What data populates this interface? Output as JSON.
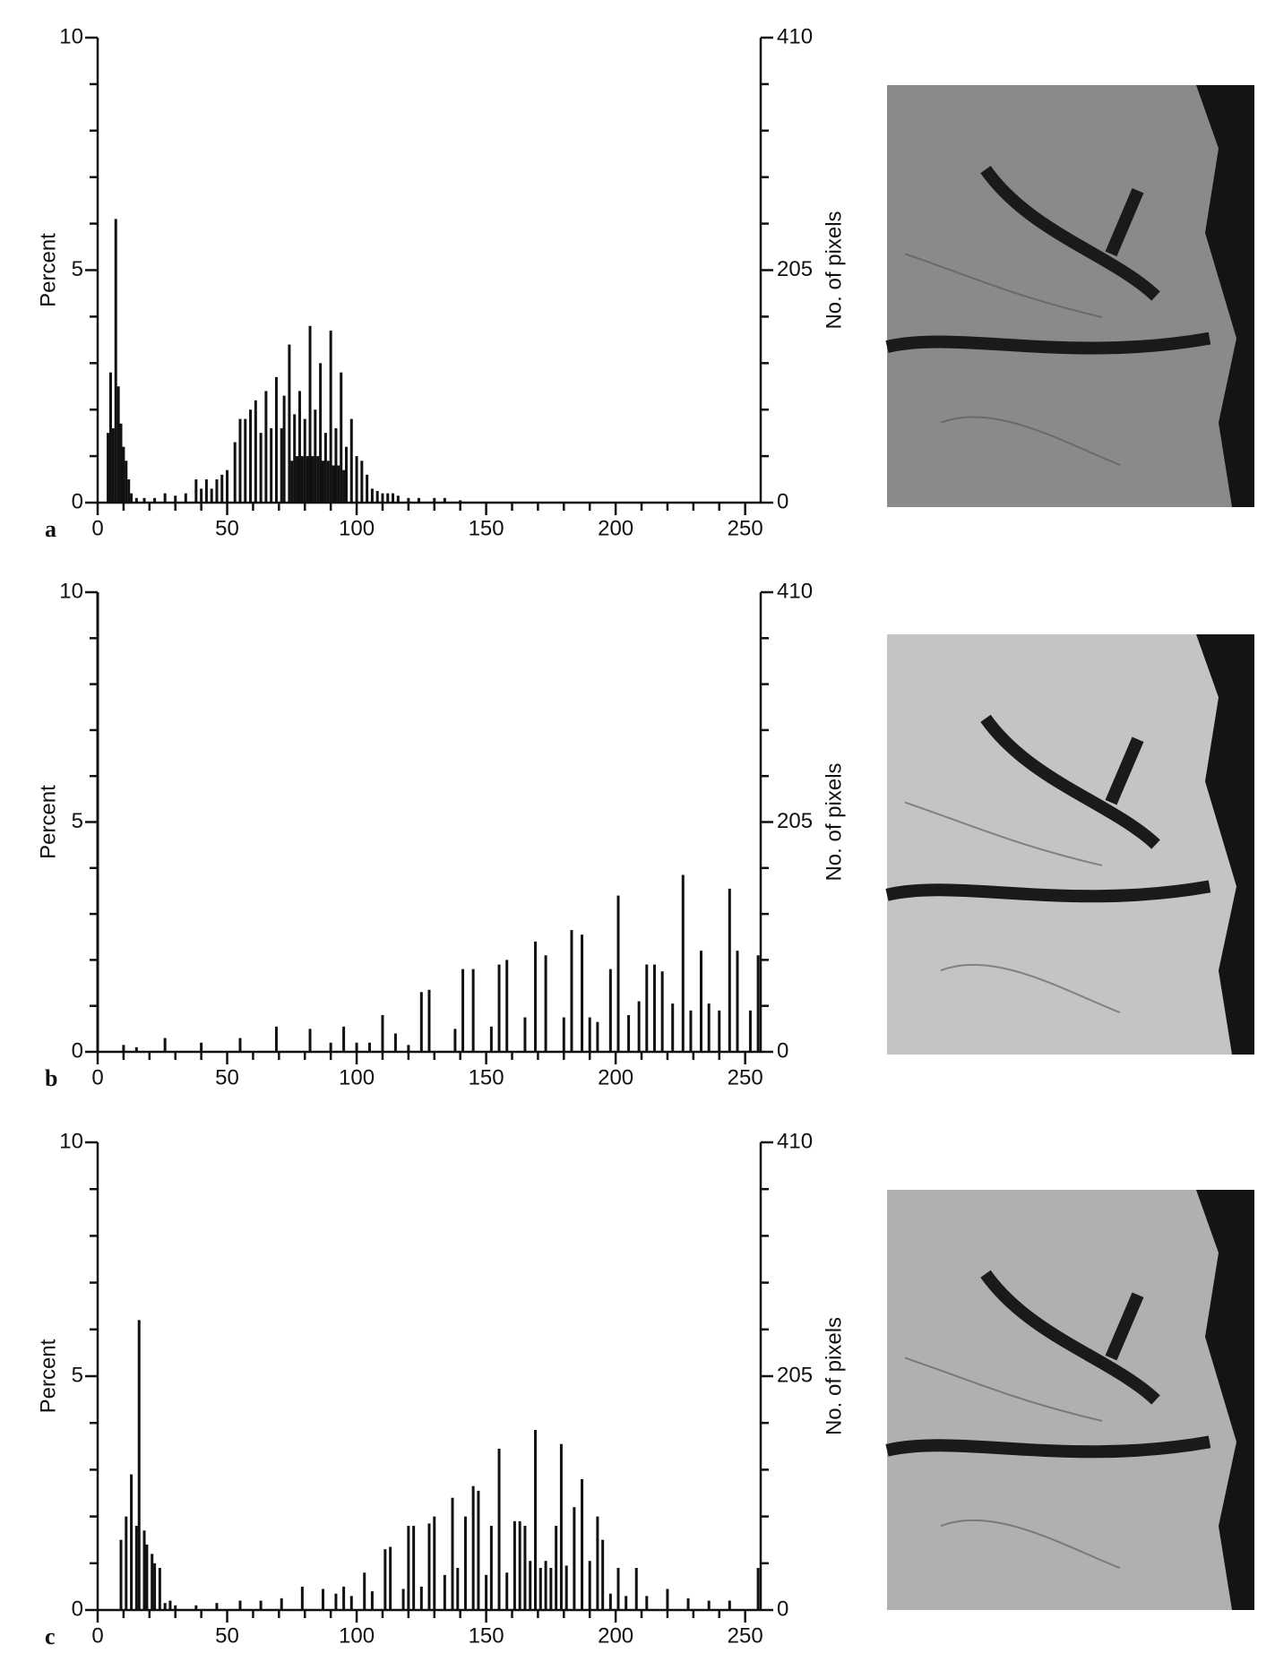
{
  "chart_data": [
    {
      "type": "bar",
      "panel_label": "a",
      "ylabel": "Percent",
      "y2label": "No. of pixels",
      "color": "#111111",
      "xlim": [
        0,
        256
      ],
      "xticks": [
        0,
        50,
        100,
        150,
        200,
        250
      ],
      "xticks_minor": [
        10,
        20,
        30,
        40,
        60,
        70,
        80,
        90,
        110,
        120,
        130,
        140,
        160,
        170,
        180,
        190,
        210,
        220,
        230,
        240
      ],
      "ylim": [
        0,
        10
      ],
      "yticks": [
        0,
        5,
        10
      ],
      "yticks_minor": [
        1,
        2,
        3,
        4,
        6,
        7,
        8,
        9
      ],
      "y2lim": [
        0,
        410
      ],
      "y2ticks": [
        0,
        205,
        410
      ],
      "y2ticks_minor": [
        41,
        82,
        123,
        164,
        246,
        287,
        328,
        369
      ],
      "x": [
        4,
        5,
        6,
        7,
        8,
        9,
        10,
        11,
        12,
        13,
        15,
        18,
        22,
        26,
        30,
        34,
        38,
        40,
        42,
        44,
        46,
        48,
        50,
        53,
        55,
        57,
        59,
        61,
        63,
        65,
        67,
        69,
        71,
        72,
        74,
        75,
        76,
        77,
        78,
        79,
        80,
        81,
        82,
        83,
        84,
        85,
        86,
        87,
        88,
        89,
        90,
        91,
        92,
        93,
        94,
        95,
        96,
        98,
        100,
        102,
        104,
        106,
        108,
        110,
        112,
        114,
        116,
        120,
        124,
        130,
        134,
        140
      ],
      "values": [
        1.5,
        2.8,
        1.6,
        6.1,
        2.5,
        1.7,
        1.2,
        0.9,
        0.5,
        0.2,
        0.1,
        0.1,
        0.1,
        0.2,
        0.15,
        0.2,
        0.5,
        0.3,
        0.5,
        0.3,
        0.5,
        0.6,
        0.7,
        1.3,
        1.8,
        1.8,
        2.0,
        2.2,
        1.5,
        2.4,
        1.6,
        2.7,
        1.6,
        2.3,
        3.4,
        0.9,
        1.9,
        1.0,
        2.4,
        1.0,
        1.8,
        1.0,
        3.8,
        1.0,
        2.0,
        1.0,
        3.0,
        0.9,
        1.5,
        0.9,
        3.7,
        0.8,
        1.6,
        0.8,
        2.8,
        0.7,
        1.2,
        1.8,
        1.0,
        0.9,
        0.6,
        0.3,
        0.25,
        0.2,
        0.2,
        0.2,
        0.15,
        0.1,
        0.1,
        0.1,
        0.1,
        0.05
      ]
    },
    {
      "type": "bar",
      "panel_label": "b",
      "ylabel": "Percent",
      "y2label": "No. of pixels",
      "color": "#111111",
      "xlim": [
        0,
        256
      ],
      "xticks": [
        0,
        50,
        100,
        150,
        200,
        250
      ],
      "xticks_minor": [
        10,
        20,
        30,
        40,
        60,
        70,
        80,
        90,
        110,
        120,
        130,
        140,
        160,
        170,
        180,
        190,
        210,
        220,
        230,
        240
      ],
      "ylim": [
        0,
        10
      ],
      "yticks": [
        0,
        5,
        10
      ],
      "yticks_minor": [
        1,
        2,
        3,
        4,
        6,
        7,
        8,
        9
      ],
      "y2lim": [
        0,
        410
      ],
      "y2ticks": [
        0,
        205,
        410
      ],
      "y2ticks_minor": [
        41,
        82,
        123,
        164,
        246,
        287,
        328,
        369
      ],
      "x": [
        0,
        10,
        15,
        26,
        40,
        55,
        69,
        82,
        90,
        95,
        100,
        105,
        110,
        115,
        120,
        125,
        128,
        138,
        141,
        145,
        152,
        155,
        158,
        165,
        169,
        173,
        180,
        183,
        187,
        190,
        193,
        198,
        201,
        205,
        209,
        212,
        215,
        218,
        222,
        226,
        229,
        233,
        236,
        240,
        244,
        247,
        252,
        255
      ],
      "values": [
        10,
        0.15,
        0.1,
        0.3,
        0.2,
        0.3,
        0.55,
        0.5,
        0.2,
        0.55,
        0.2,
        0.2,
        0.8,
        0.4,
        0.15,
        1.3,
        1.35,
        0.5,
        1.8,
        1.8,
        0.55,
        1.9,
        2.0,
        0.75,
        2.4,
        2.1,
        0.75,
        2.65,
        2.55,
        0.75,
        0.65,
        1.8,
        3.4,
        0.8,
        1.1,
        1.9,
        1.9,
        1.75,
        1.05,
        3.85,
        0.9,
        2.2,
        1.05,
        0.9,
        3.55,
        2.2,
        0.9,
        2.1
      ]
    },
    {
      "type": "bar",
      "panel_label": "c",
      "ylabel": "Percent",
      "y2label": "No. of pixels",
      "color": "#111111",
      "xlim": [
        0,
        256
      ],
      "xticks": [
        0,
        50,
        100,
        150,
        200,
        250
      ],
      "xticks_minor": [
        10,
        20,
        30,
        40,
        60,
        70,
        80,
        90,
        110,
        120,
        130,
        140,
        160,
        170,
        180,
        190,
        210,
        220,
        230,
        240
      ],
      "ylim": [
        0,
        10
      ],
      "yticks": [
        0,
        5,
        10
      ],
      "yticks_minor": [
        1,
        2,
        3,
        4,
        6,
        7,
        8,
        9
      ],
      "y2lim": [
        0,
        410
      ],
      "y2ticks": [
        0,
        205,
        410
      ],
      "y2ticks_minor": [
        41,
        82,
        123,
        164,
        246,
        287,
        328,
        369
      ],
      "x": [
        9,
        11,
        13,
        15,
        16,
        18,
        19,
        21,
        22,
        24,
        26,
        28,
        30,
        38,
        46,
        55,
        63,
        71,
        79,
        87,
        92,
        95,
        98,
        103,
        106,
        111,
        113,
        118,
        120,
        122,
        125,
        128,
        130,
        134,
        137,
        139,
        142,
        145,
        147,
        150,
        152,
        155,
        158,
        161,
        163,
        165,
        167,
        169,
        171,
        173,
        175,
        177,
        179,
        181,
        184,
        187,
        190,
        193,
        195,
        198,
        201,
        204,
        208,
        212,
        220,
        228,
        236,
        244,
        255
      ],
      "values": [
        1.5,
        2.0,
        2.9,
        1.8,
        6.2,
        1.7,
        1.4,
        1.2,
        1.0,
        0.9,
        0.15,
        0.2,
        0.1,
        0.1,
        0.15,
        0.2,
        0.2,
        0.25,
        0.5,
        0.45,
        0.35,
        0.5,
        0.3,
        0.8,
        0.4,
        1.3,
        1.35,
        0.45,
        1.8,
        1.8,
        0.5,
        1.85,
        2.0,
        0.75,
        2.4,
        0.9,
        2.0,
        2.65,
        2.55,
        0.75,
        1.8,
        3.45,
        0.8,
        1.9,
        1.9,
        1.8,
        1.05,
        3.85,
        0.9,
        1.05,
        0.9,
        1.8,
        3.55,
        0.95,
        2.2,
        2.8,
        1.05,
        2.0,
        1.5,
        0.35,
        0.9,
        0.3,
        0.9,
        0.3,
        0.45,
        0.25,
        0.2,
        0.2,
        0.9
      ]
    }
  ]
}
